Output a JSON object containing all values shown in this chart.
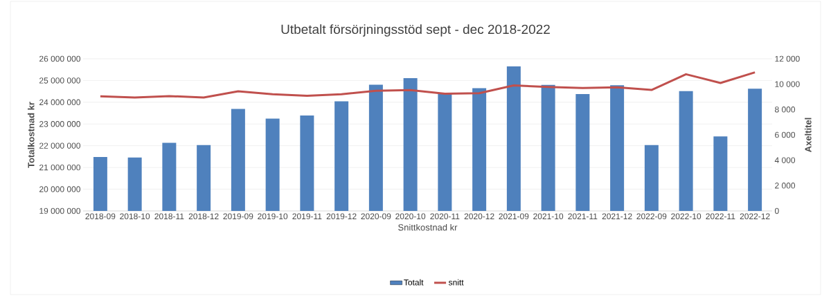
{
  "chart_data": {
    "type": "bar",
    "title": "Utbetalt försörjningsstöd sept - dec 2018-2022",
    "xlabel": "Snittkostnad kr",
    "ylabel": "Totalkostnad kr",
    "y2label": "Axeltitel",
    "categories": [
      "2018-09",
      "2018-10",
      "2018-11",
      "2018-12",
      "2019-09",
      "2019-10",
      "2019-11",
      "2019-12",
      "2020-09",
      "2020-10",
      "2020-11",
      "2020-12",
      "2021-09",
      "2021-10",
      "2021-11",
      "2021-12",
      "2022-09",
      "2022-10",
      "2022-11",
      "2022-12"
    ],
    "series": [
      {
        "name": "Totalt",
        "color": "#4f81bd",
        "values": [
          21480000,
          21460000,
          22130000,
          22030000,
          23690000,
          23250000,
          23390000,
          24040000,
          24810000,
          25110000,
          24410000,
          24650000,
          25650000,
          24800000,
          24380000,
          24780000,
          22030000,
          24510000,
          22430000,
          24620000
        ]
      },
      {
        "name": "snitt",
        "type": "line",
        "axis": "y2",
        "color": "#c0504d",
        "values": [
          9040,
          8940,
          9060,
          8940,
          9440,
          9210,
          9080,
          9210,
          9480,
          9530,
          9250,
          9290,
          9900,
          9780,
          9690,
          9750,
          9540,
          10780,
          10090,
          10930
        ]
      }
    ],
    "ylim": [
      19000000,
      26000000
    ],
    "yticks": [
      {
        "value": 19000000,
        "label": "19 000 000"
      },
      {
        "value": 20000000,
        "label": "20 000 000"
      },
      {
        "value": 21000000,
        "label": "21 000 000"
      },
      {
        "value": 22000000,
        "label": "22 000 000"
      },
      {
        "value": 23000000,
        "label": "23 000 000"
      },
      {
        "value": 24000000,
        "label": "24 000 000"
      },
      {
        "value": 25000000,
        "label": "25 000 000"
      },
      {
        "value": 26000000,
        "label": "26 000 000"
      }
    ],
    "y2lim": [
      0,
      12000
    ],
    "y2ticks": [
      0,
      {
        "value": 2000,
        "label": "2 000"
      },
      {
        "value": 4000,
        "label": "4 000"
      },
      {
        "value": 6000,
        "label": "6 000"
      },
      {
        "value": 8000,
        "label": "8 000"
      },
      {
        "value": 10000,
        "label": "10 000"
      },
      {
        "value": 12000,
        "label": "12 000"
      }
    ],
    "grid": "y",
    "legend": "bottom"
  }
}
